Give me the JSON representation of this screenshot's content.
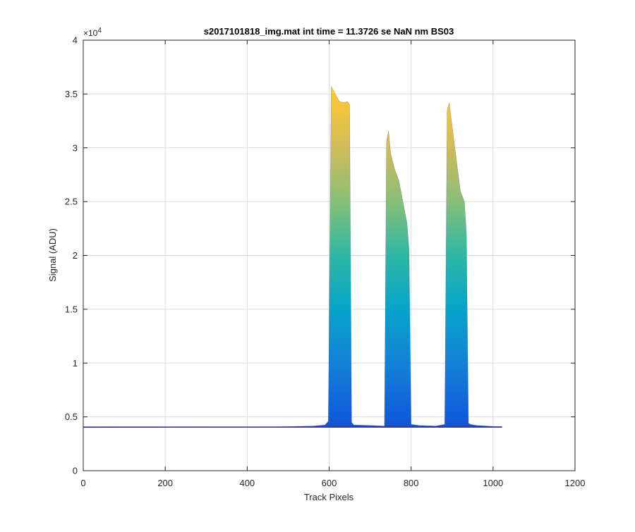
{
  "chart_data": {
    "type": "area",
    "title": "s2017101818_img.mat int time = 11.3726 se  NaN nm BS03",
    "xlabel": "Track Pixels",
    "ylabel": "Signal (ADU)",
    "xlim": [
      0,
      1200
    ],
    "ylim": [
      0,
      40000
    ],
    "xticks": [
      0,
      200,
      400,
      600,
      800,
      1000,
      1200
    ],
    "xtick_labels": [
      "0",
      "200",
      "400",
      "600",
      "800",
      "1000",
      "1200"
    ],
    "yticks": [
      0,
      5000,
      10000,
      15000,
      20000,
      25000,
      30000,
      35000,
      40000
    ],
    "ytick_labels": [
      "0",
      "0.5",
      "1",
      "1.5",
      "2",
      "2.5",
      "3",
      "3.5",
      "4"
    ],
    "y_exponent_label": "×10",
    "y_exponent_power": "4",
    "grid": true,
    "colormap": "parula",
    "colormap_stops": [
      "#352a87",
      "#0f5cdd",
      "#1481d6",
      "#06a4ca",
      "#2eb7a4",
      "#87bf77",
      "#d1bb59",
      "#fec832",
      "#f9fb0e"
    ],
    "baseline": 4050,
    "series": [
      {
        "x": [
          0,
          100,
          200,
          300,
          400,
          500,
          560,
          590,
          598,
          605,
          615,
          625,
          635,
          645,
          650,
          655,
          660,
          700,
          735,
          740,
          745,
          750,
          760,
          770,
          780,
          790,
          795,
          800,
          820,
          860,
          882,
          888,
          893,
          900,
          910,
          920,
          930,
          935,
          940,
          945,
          960,
          1000,
          1022
        ],
        "y": [
          4000,
          4010,
          4020,
          4040,
          4060,
          4100,
          4150,
          4250,
          4600,
          35700,
          35000,
          34300,
          34200,
          34300,
          34000,
          4500,
          4250,
          4200,
          4150,
          30500,
          31600,
          29500,
          28000,
          27000,
          25000,
          23000,
          20500,
          4300,
          4200,
          4150,
          4300,
          33500,
          34200,
          32000,
          29000,
          26000,
          25000,
          22000,
          4400,
          4300,
          4200,
          4120,
          4100
        ]
      }
    ]
  }
}
